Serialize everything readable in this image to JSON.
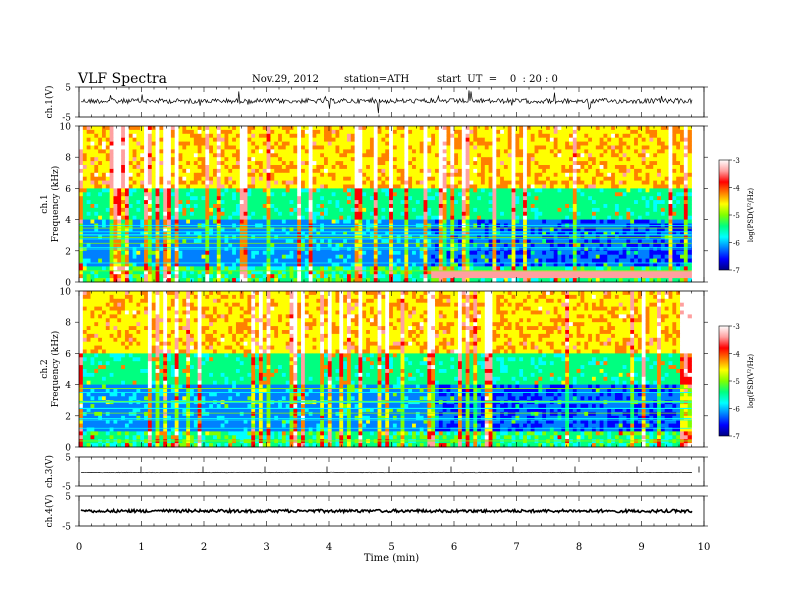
{
  "header": {
    "title": "VLF  Spectra",
    "date": "Nov.29, 2012",
    "station": "station=ATH",
    "start": "start  UT  =    0  : 20 : 0"
  },
  "colorbar": {
    "label": "log(PSD(V²/Hz)",
    "ticks": [
      "-3",
      "-4",
      "-5",
      "-6",
      "-7"
    ],
    "colors": [
      "#000080",
      "#0000ff",
      "#0080ff",
      "#00ffff",
      "#00ff80",
      "#80ff00",
      "#ffff00",
      "#ff8000",
      "#ff0000",
      "#ffa0a0",
      "#ffffff"
    ]
  },
  "chart_data": [
    {
      "type": "line",
      "panel": "ch1-waveform",
      "ylabel": "ch.1(V)",
      "ylim": [
        -5,
        5
      ],
      "yticks": [
        "5",
        "-5"
      ],
      "xlim": [
        0,
        10
      ]
    },
    {
      "type": "heatmap",
      "panel": "ch1-spectrogram",
      "ylabel": "ch.1\nFrequency (kHz)",
      "ylim": [
        0,
        10
      ],
      "yticks": [
        "10",
        "8",
        "6",
        "4",
        "2",
        "0"
      ],
      "xlim": [
        0,
        10
      ],
      "data_end_min": 9.8,
      "zlim": [
        -7,
        -3
      ]
    },
    {
      "type": "heatmap",
      "panel": "ch2-spectrogram",
      "ylabel": "ch.2\nFrequency (kHz)",
      "ylim": [
        0,
        10
      ],
      "yticks": [
        "10",
        "8",
        "6",
        "4",
        "2",
        "0"
      ],
      "xlim": [
        0,
        10
      ],
      "data_end_min": 9.8,
      "zlim": [
        -7,
        -3
      ]
    },
    {
      "type": "line",
      "panel": "ch3-waveform",
      "ylabel": "ch.3(V)",
      "ylim": [
        -5,
        5
      ],
      "yticks": [
        "5",
        "-5"
      ],
      "xlim": [
        0,
        10
      ]
    },
    {
      "type": "line",
      "panel": "ch4-waveform",
      "ylabel": "ch.4(V)",
      "ylim": [
        -5,
        5
      ],
      "yticks": [
        "5",
        "-5"
      ],
      "xlim": [
        0,
        10
      ],
      "xlabel": "Time  (min)",
      "xticks": [
        "0",
        "1",
        "2",
        "3",
        "4",
        "5",
        "6",
        "7",
        "8",
        "9",
        "10"
      ]
    }
  ]
}
